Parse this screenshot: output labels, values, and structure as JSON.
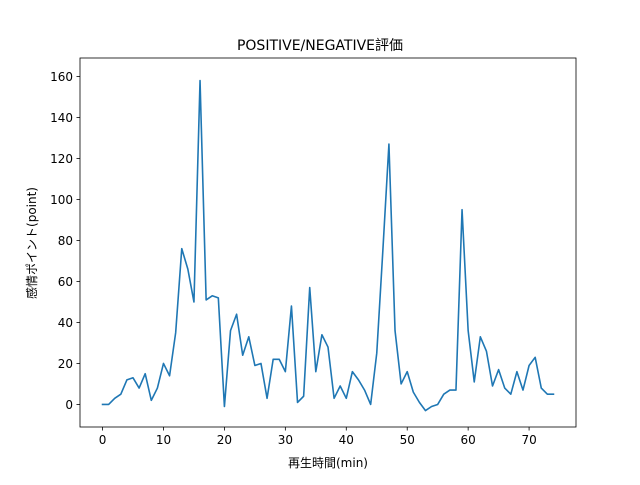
{
  "chart_data": {
    "type": "line",
    "title": "POSITIVE/NEGATIVE評価",
    "xlabel": "再生時間(min)",
    "ylabel": "感情ポイント(point)",
    "xlim": [
      -3.7,
      77.7
    ],
    "ylim": [
      -11,
      169
    ],
    "xticks": [
      0,
      10,
      20,
      30,
      40,
      50,
      60,
      70
    ],
    "yticks": [
      0,
      20,
      40,
      60,
      80,
      100,
      120,
      140,
      160
    ],
    "grid": false,
    "legend": "none",
    "line_color": "#1f77b4",
    "series": [
      {
        "x": [
          0,
          1,
          2,
          3,
          4,
          5,
          6,
          7,
          8,
          9,
          10,
          11,
          12,
          13,
          14,
          15,
          16,
          17,
          18,
          19,
          20,
          21,
          22,
          23,
          24,
          25,
          26,
          27,
          28,
          29,
          30,
          31,
          32,
          33,
          34,
          35,
          36,
          37,
          38,
          39,
          40,
          41,
          42,
          43,
          44,
          45,
          46,
          47,
          48,
          49,
          50,
          51,
          52,
          53,
          54,
          55,
          56,
          57,
          58,
          59,
          60,
          61,
          62,
          63,
          64,
          65,
          66,
          67,
          68,
          69,
          70,
          71,
          72,
          73,
          74
        ],
        "values": [
          0,
          0,
          3,
          5,
          12,
          13,
          8,
          15,
          2,
          8,
          20,
          14,
          35,
          76,
          66,
          50,
          158,
          51,
          53,
          52,
          -1,
          36,
          44,
          24,
          33,
          19,
          20,
          3,
          22,
          22,
          16,
          48,
          1,
          4,
          57,
          16,
          34,
          28,
          3,
          9,
          3,
          16,
          12,
          7,
          0,
          25,
          75,
          127,
          36,
          10,
          16,
          6,
          1,
          -3,
          -1,
          0,
          5,
          7,
          7,
          95,
          36,
          11,
          33,
          26,
          9,
          17,
          8,
          5,
          16,
          7,
          19,
          23,
          8,
          5,
          5
        ]
      }
    ]
  }
}
